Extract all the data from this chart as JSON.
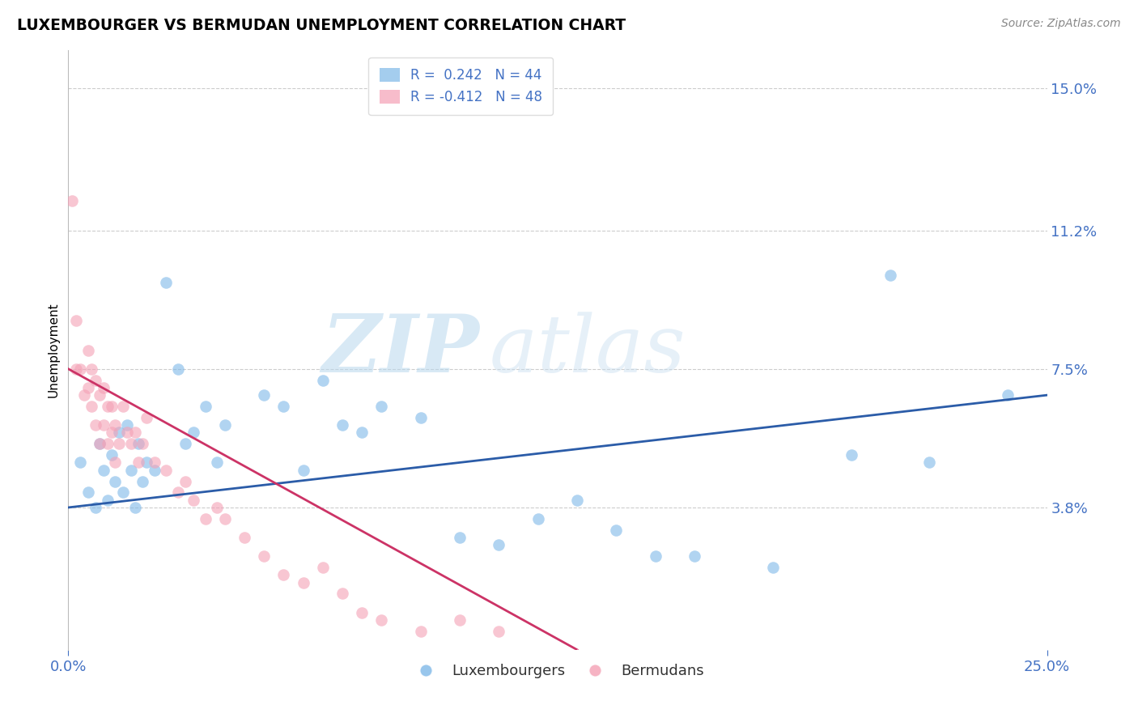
{
  "title": "LUXEMBOURGER VS BERMUDAN UNEMPLOYMENT CORRELATION CHART",
  "source": "Source: ZipAtlas.com",
  "ylabel": "Unemployment",
  "xlim": [
    0.0,
    0.25
  ],
  "ylim": [
    0.0,
    0.16
  ],
  "yticks": [
    0.038,
    0.075,
    0.112,
    0.15
  ],
  "ytick_labels": [
    "3.8%",
    "7.5%",
    "11.2%",
    "15.0%"
  ],
  "xtick_labels": [
    "0.0%",
    "25.0%"
  ],
  "blue_color": "#7EB8E8",
  "pink_color": "#F4A0B5",
  "blue_line_color": "#2B5CA8",
  "pink_line_color": "#CC3366",
  "pink_line_dashed_color": "#F0B8C8",
  "legend_blue_label": "R =  0.242   N = 44",
  "legend_pink_label": "R = -0.412   N = 48",
  "legend_lux": "Luxembourgers",
  "legend_ber": "Bermudans",
  "tick_color": "#4472C4",
  "blue_x": [
    0.003,
    0.005,
    0.007,
    0.008,
    0.009,
    0.01,
    0.011,
    0.012,
    0.013,
    0.014,
    0.015,
    0.016,
    0.017,
    0.018,
    0.019,
    0.02,
    0.022,
    0.025,
    0.028,
    0.03,
    0.032,
    0.035,
    0.038,
    0.04,
    0.05,
    0.055,
    0.06,
    0.065,
    0.07,
    0.075,
    0.08,
    0.09,
    0.1,
    0.11,
    0.12,
    0.13,
    0.14,
    0.15,
    0.16,
    0.18,
    0.2,
    0.21,
    0.22,
    0.24
  ],
  "blue_y": [
    0.05,
    0.042,
    0.038,
    0.055,
    0.048,
    0.04,
    0.052,
    0.045,
    0.058,
    0.042,
    0.06,
    0.048,
    0.038,
    0.055,
    0.045,
    0.05,
    0.048,
    0.098,
    0.075,
    0.055,
    0.058,
    0.065,
    0.05,
    0.06,
    0.068,
    0.065,
    0.048,
    0.072,
    0.06,
    0.058,
    0.065,
    0.062,
    0.03,
    0.028,
    0.035,
    0.04,
    0.032,
    0.025,
    0.025,
    0.022,
    0.052,
    0.1,
    0.05,
    0.068
  ],
  "pink_x": [
    0.001,
    0.002,
    0.002,
    0.003,
    0.004,
    0.005,
    0.005,
    0.006,
    0.006,
    0.007,
    0.007,
    0.008,
    0.008,
    0.009,
    0.009,
    0.01,
    0.01,
    0.011,
    0.011,
    0.012,
    0.012,
    0.013,
    0.014,
    0.015,
    0.016,
    0.017,
    0.018,
    0.019,
    0.02,
    0.022,
    0.025,
    0.028,
    0.03,
    0.032,
    0.035,
    0.038,
    0.04,
    0.045,
    0.05,
    0.055,
    0.06,
    0.065,
    0.07,
    0.075,
    0.08,
    0.09,
    0.1,
    0.11
  ],
  "pink_y": [
    0.12,
    0.075,
    0.088,
    0.075,
    0.068,
    0.08,
    0.07,
    0.065,
    0.075,
    0.06,
    0.072,
    0.055,
    0.068,
    0.06,
    0.07,
    0.055,
    0.065,
    0.058,
    0.065,
    0.05,
    0.06,
    0.055,
    0.065,
    0.058,
    0.055,
    0.058,
    0.05,
    0.055,
    0.062,
    0.05,
    0.048,
    0.042,
    0.045,
    0.04,
    0.035,
    0.038,
    0.035,
    0.03,
    0.025,
    0.02,
    0.018,
    0.022,
    0.015,
    0.01,
    0.008,
    0.005,
    0.008,
    0.005
  ],
  "watermark_zip": "ZIP",
  "watermark_atlas": "atlas",
  "background_color": "#FFFFFF",
  "grid_color": "#CCCCCC",
  "blue_line_start_x": 0.0,
  "blue_line_start_y": 0.038,
  "blue_line_end_x": 0.25,
  "blue_line_end_y": 0.068,
  "pink_line_start_x": 0.0,
  "pink_line_start_y": 0.075,
  "pink_line_end_x": 0.13,
  "pink_line_end_y": 0.0
}
